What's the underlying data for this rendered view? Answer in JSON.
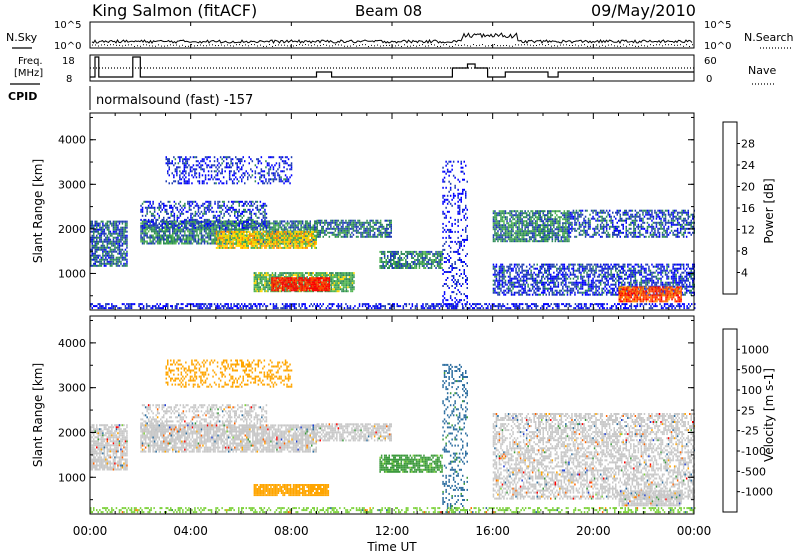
{
  "header": {
    "station": "King Salmon (fitACF)",
    "beam": "Beam 08",
    "date": "09/May/2010"
  },
  "noise_panel": {
    "left_label": "N.Sky",
    "right_label": "N.Search",
    "left_ticks": [
      "10^5",
      "10^0"
    ],
    "right_ticks": [
      "10^5",
      "10^0"
    ]
  },
  "freq_panel": {
    "left_label_1": "Freq.",
    "left_label_2": "[MHz]",
    "right_label": "Nave",
    "left_ticks": [
      "18",
      "8"
    ],
    "right_ticks": [
      "60",
      "0"
    ]
  },
  "cpid_panel": {
    "label": "CPID",
    "text": "normalsound (fast) -157"
  },
  "time_axis": {
    "title": "Time UT",
    "tick_labels": [
      "00:00",
      "04:00",
      "08:00",
      "12:00",
      "16:00",
      "20:00",
      "00:00"
    ]
  },
  "colors": {
    "power": [
      "#0000ff",
      "#1e3cb4",
      "#2e8b57",
      "#4fb34f",
      "#ffd700",
      "#ff8c00",
      "#ff4500",
      "#ff0000"
    ],
    "velocity": [
      "#1e3cd2",
      "#2d6ea0",
      "#3c9a3c",
      "#7dd23c",
      "#c8c8c8",
      "#c8c8c8",
      "#ffa500",
      "#ff6400",
      "#ff0000"
    ]
  },
  "chart_data": [
    {
      "type": "heatmap",
      "title": "",
      "xlabel": "",
      "ylabel": "Slant Range [km]",
      "xlim": [
        0,
        24
      ],
      "ylim": [
        180,
        4600
      ],
      "y_ticks": [
        "1000",
        "2000",
        "3000",
        "4000"
      ],
      "colorbar": {
        "label": "Power [dB]",
        "ticks": [
          "28",
          "24",
          "20",
          "16",
          "12",
          "8",
          "4"
        ],
        "range": [
          0,
          30
        ]
      },
      "regions": [
        {
          "t": [
            0.0,
            1.5
          ],
          "r": [
            1150,
            2150
          ],
          "value": 7,
          "density": 0.75
        },
        {
          "t": [
            2.0,
            9.0
          ],
          "r": [
            1650,
            2150
          ],
          "value": 9,
          "density": 0.8
        },
        {
          "t": [
            5.0,
            9.0
          ],
          "r": [
            1550,
            1950
          ],
          "value": 17,
          "density": 0.85
        },
        {
          "t": [
            2.0,
            7.0
          ],
          "r": [
            2000,
            2600
          ],
          "value": 5,
          "density": 0.4
        },
        {
          "t": [
            3.0,
            8.0
          ],
          "r": [
            3000,
            3600
          ],
          "value": 4,
          "density": 0.35
        },
        {
          "t": [
            6.5,
            10.5
          ],
          "r": [
            580,
            1000
          ],
          "value": 12,
          "density": 0.85
        },
        {
          "t": [
            7.2,
            9.5
          ],
          "r": [
            600,
            900
          ],
          "value": 27,
          "density": 0.9
        },
        {
          "t": [
            9.0,
            12.0
          ],
          "r": [
            1800,
            2200
          ],
          "value": 8,
          "density": 0.7
        },
        {
          "t": [
            11.5,
            14.0
          ],
          "r": [
            1100,
            1500
          ],
          "value": 9,
          "density": 0.75
        },
        {
          "t": [
            14.0,
            15.0
          ],
          "r": [
            200,
            3500
          ],
          "value": 3,
          "density": 0.25
        },
        {
          "t": [
            16.0,
            19.0
          ],
          "r": [
            1700,
            2400
          ],
          "value": 9,
          "density": 0.8
        },
        {
          "t": [
            16.0,
            24.0
          ],
          "r": [
            500,
            1200
          ],
          "value": 5,
          "density": 0.6
        },
        {
          "t": [
            19.0,
            24.0
          ],
          "r": [
            1800,
            2400
          ],
          "value": 6,
          "density": 0.55
        },
        {
          "t": [
            21.0,
            23.5
          ],
          "r": [
            350,
            700
          ],
          "value": 24,
          "density": 0.85
        },
        {
          "t": [
            0.0,
            24.0
          ],
          "r": [
            200,
            320
          ],
          "value": 3,
          "density": 0.5
        }
      ]
    },
    {
      "type": "heatmap",
      "title": "",
      "xlabel": "Time UT",
      "ylabel": "Slant Range [km]",
      "xlim": [
        0,
        24
      ],
      "ylim": [
        180,
        4600
      ],
      "y_ticks": [
        "1000",
        "2000",
        "3000",
        "4000"
      ],
      "colorbar": {
        "label": "Velocity [m s-1]",
        "ticks": [
          "1000",
          "500",
          "100",
          "25",
          "-25",
          "-100",
          "-500",
          "-1000"
        ],
        "range": [
          -1200,
          1200
        ]
      },
      "regions": [
        {
          "t": [
            0.0,
            1.5
          ],
          "r": [
            1150,
            2150
          ],
          "value": 0,
          "density": 0.75
        },
        {
          "t": [
            2.0,
            9.0
          ],
          "r": [
            1550,
            2150
          ],
          "value": 0,
          "density": 0.8
        },
        {
          "t": [
            2.0,
            7.0
          ],
          "r": [
            2000,
            2600
          ],
          "value": 0,
          "density": 0.4
        },
        {
          "t": [
            3.0,
            8.0
          ],
          "r": [
            3000,
            3600
          ],
          "value": -150,
          "density": 0.35
        },
        {
          "t": [
            6.5,
            9.5
          ],
          "r": [
            580,
            850
          ],
          "value": -180,
          "density": 0.9
        },
        {
          "t": [
            9.0,
            12.0
          ],
          "r": [
            1800,
            2200
          ],
          "value": 0,
          "density": 0.7
        },
        {
          "t": [
            11.5,
            14.0
          ],
          "r": [
            1100,
            1500
          ],
          "value": 120,
          "density": 0.8
        },
        {
          "t": [
            14.0,
            15.0
          ],
          "r": [
            200,
            3500
          ],
          "value": 600,
          "density": 0.25
        },
        {
          "t": [
            16.0,
            24.0
          ],
          "r": [
            500,
            2400
          ],
          "value": 0,
          "density": 0.55
        },
        {
          "t": [
            21.0,
            23.5
          ],
          "r": [
            350,
            700
          ],
          "value": 0,
          "density": 0.85
        },
        {
          "t": [
            0.0,
            24.0
          ],
          "r": [
            200,
            320
          ],
          "value": 50,
          "density": 0.45
        }
      ]
    }
  ]
}
